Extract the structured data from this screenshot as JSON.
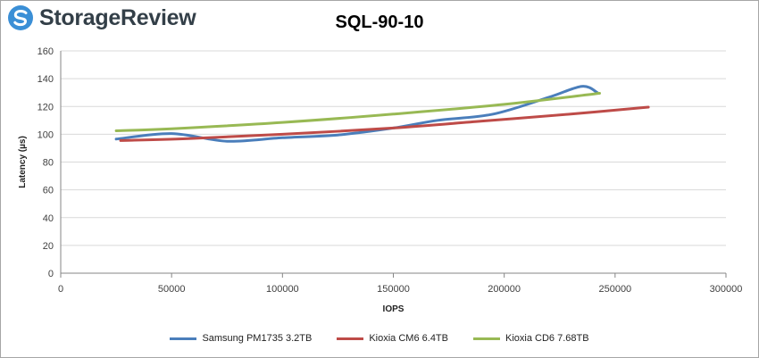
{
  "brand": {
    "name": "StorageReview",
    "colors": {
      "icon": "#3b8fd6",
      "text": "#333f48"
    }
  },
  "chart_data": {
    "type": "line",
    "title": "SQL-90-10",
    "xlabel": "IOPS",
    "ylabel": "Latency (µs)",
    "xlim": [
      0,
      300000
    ],
    "ylim": [
      0,
      160
    ],
    "xticks": [
      0,
      50000,
      100000,
      150000,
      200000,
      250000,
      300000
    ],
    "yticks": [
      0,
      20,
      40,
      60,
      80,
      100,
      120,
      140,
      160
    ],
    "xtick_labels": [
      "0",
      "50000",
      "100000",
      "150000",
      "200000",
      "250000",
      "300000"
    ],
    "ytick_labels": [
      "0",
      "20",
      "40",
      "60",
      "80",
      "100",
      "120",
      "140",
      "160"
    ],
    "grid": "horizontal",
    "legend": "bottom",
    "series": [
      {
        "name": "Samsung PM1735 3.2TB",
        "color": "#4a7ebb",
        "points": [
          [
            25000,
            96.5
          ],
          [
            50000,
            100.5
          ],
          [
            75000,
            95.0
          ],
          [
            100000,
            97.5
          ],
          [
            125000,
            99.5
          ],
          [
            150000,
            104.5
          ],
          [
            170000,
            110.0
          ],
          [
            195000,
            114.5
          ],
          [
            220000,
            126.5
          ],
          [
            235000,
            134.5
          ],
          [
            242000,
            130.0
          ]
        ]
      },
      {
        "name": "Kioxia CM6 6.4TB",
        "color": "#be4b48",
        "points": [
          [
            27000,
            95.5
          ],
          [
            60000,
            97.0
          ],
          [
            100000,
            100.0
          ],
          [
            150000,
            104.5
          ],
          [
            190000,
            109.5
          ],
          [
            230000,
            114.5
          ],
          [
            265000,
            119.5
          ]
        ]
      },
      {
        "name": "Kioxia CD6 7.68TB",
        "color": "#98b954",
        "points": [
          [
            25000,
            102.5
          ],
          [
            50000,
            104.0
          ],
          [
            100000,
            108.5
          ],
          [
            150000,
            114.5
          ],
          [
            200000,
            121.5
          ],
          [
            243000,
            129.5
          ]
        ]
      }
    ]
  }
}
